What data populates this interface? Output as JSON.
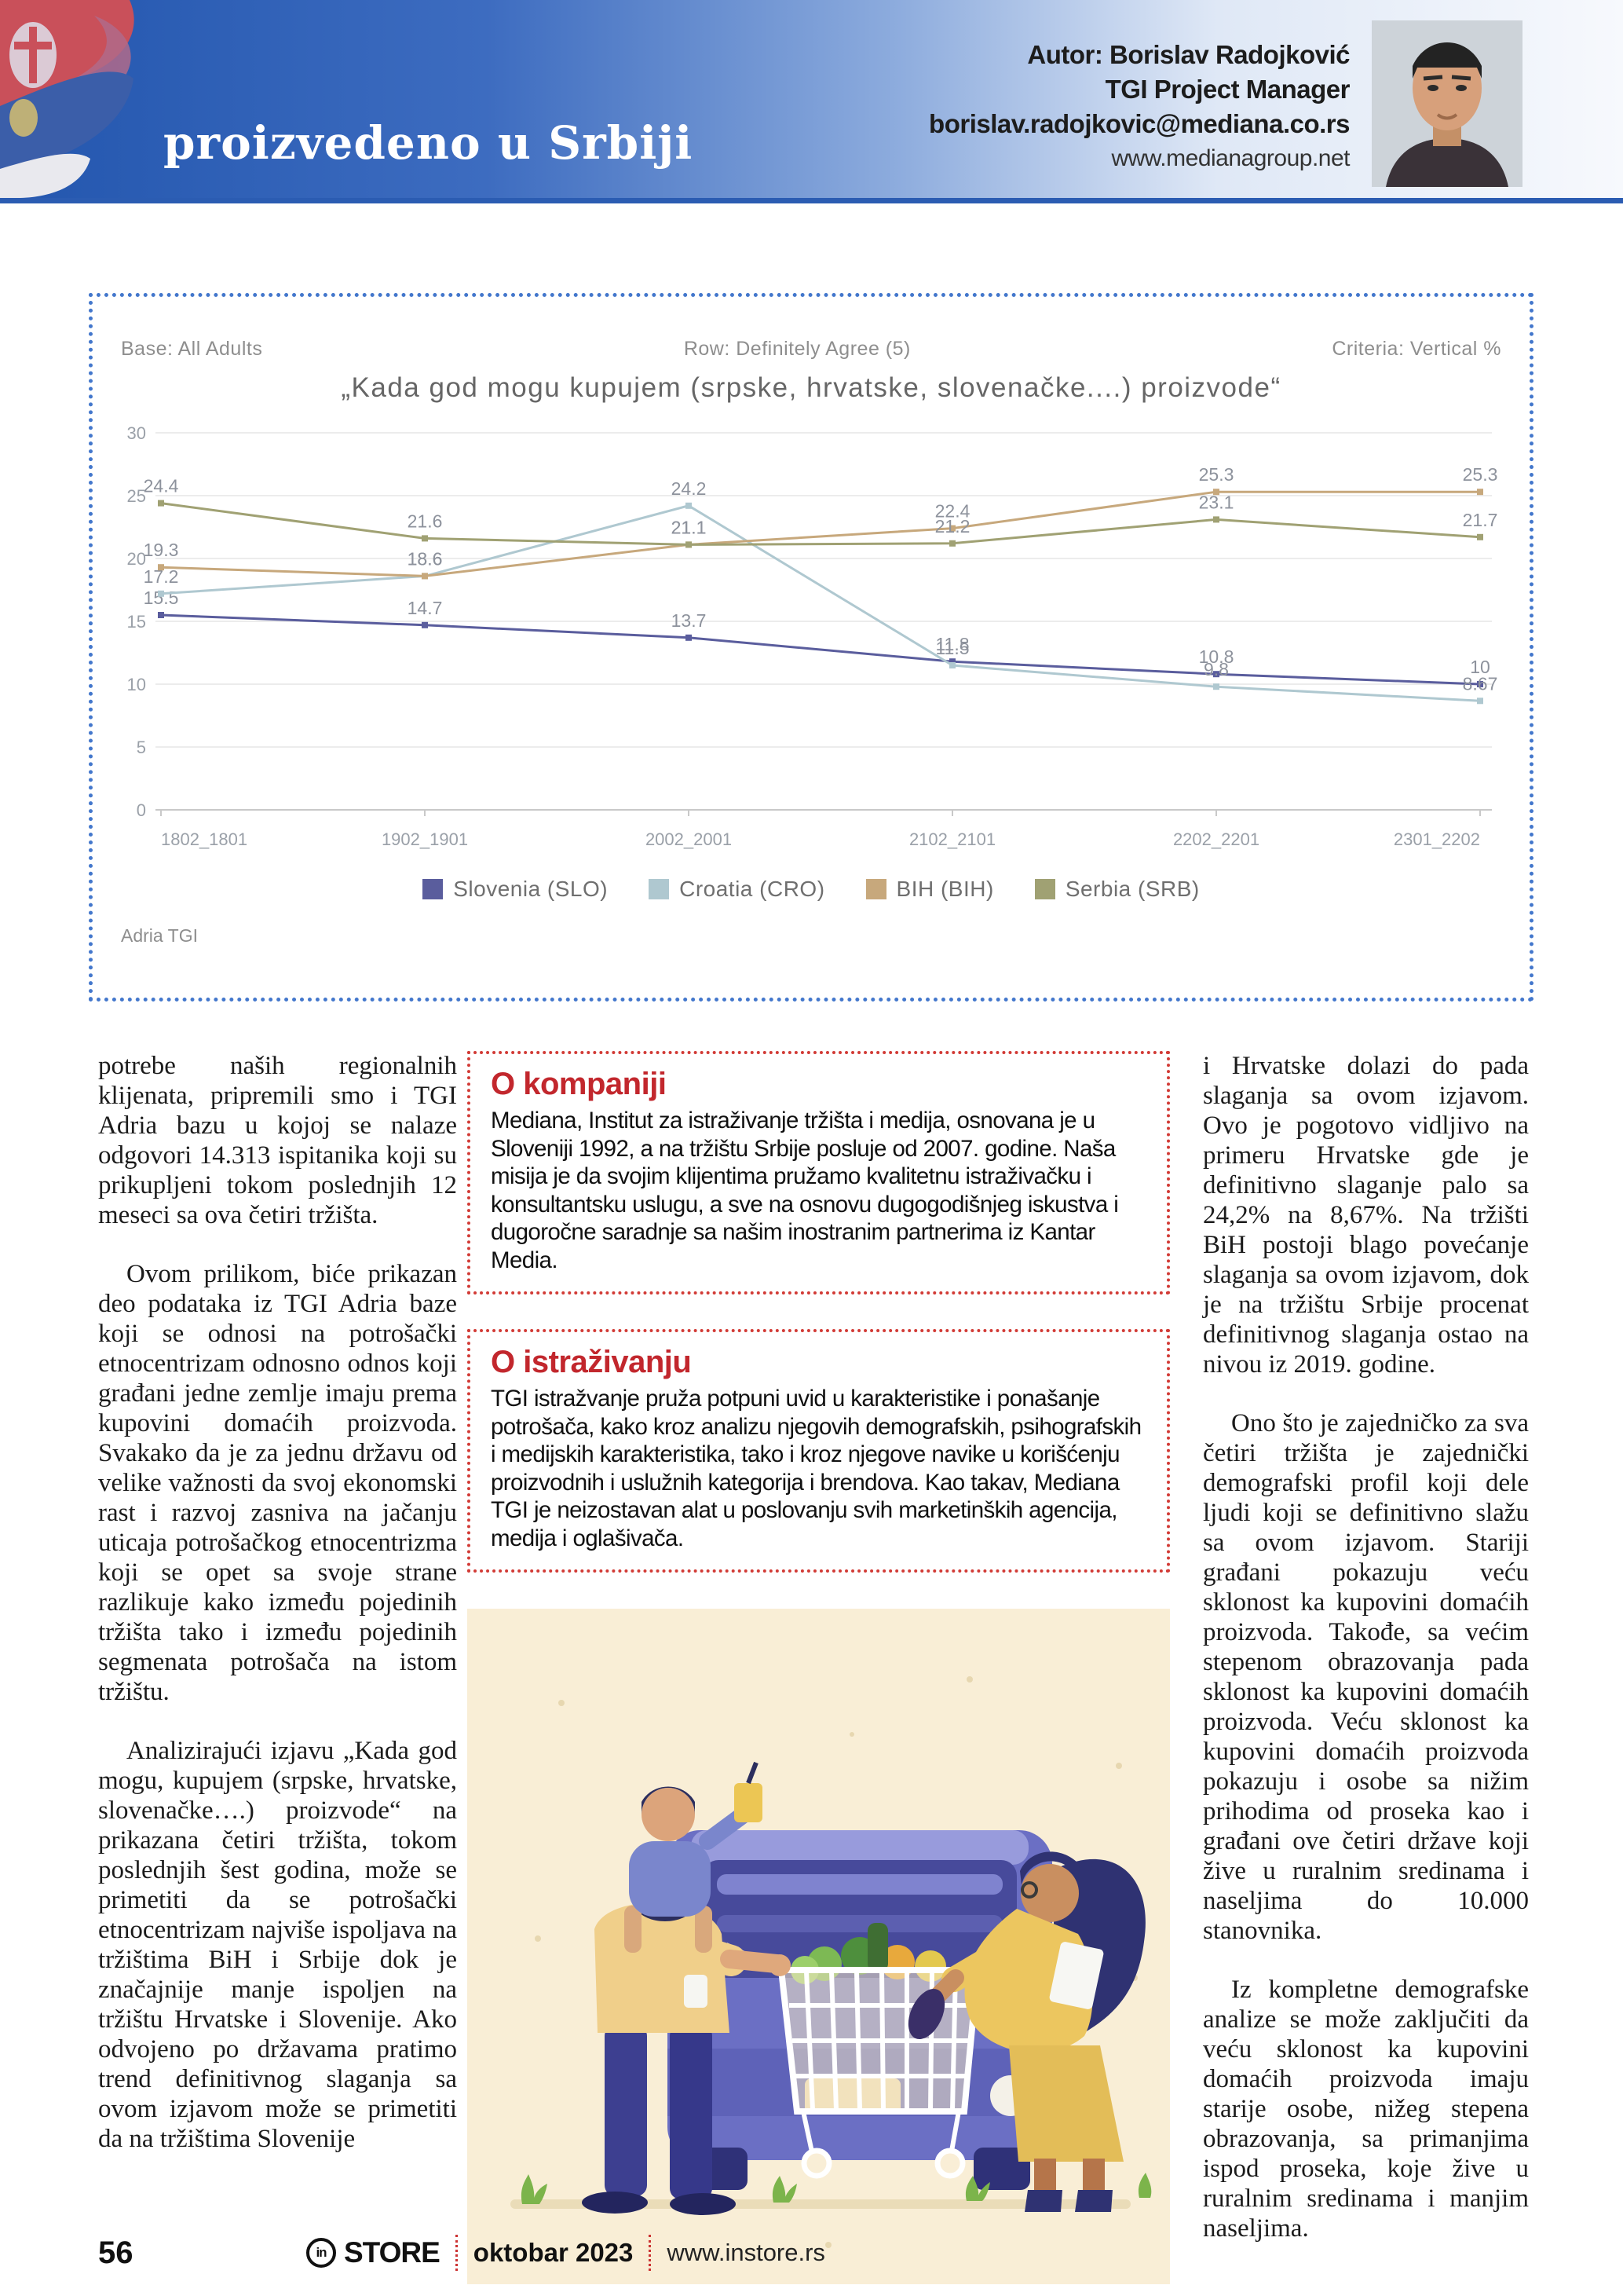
{
  "header": {
    "section_title": "proizvedeno u Srbiji",
    "author_line1": "Autor: Borislav Radojković",
    "author_line2": "TGI Project Manager",
    "author_line3": "borislav.radojkovic@mediana.co.rs",
    "author_line4": "www.medianagroup.net",
    "accent_color": "#2b5cb2"
  },
  "chart_data": {
    "type": "line",
    "title": "„Kada god mogu kupujem (srpske, hrvatske, slovenačke....) proizvode“",
    "base_note": "Base: All Adults",
    "row_note": "Row: Definitely Agree (5)",
    "criteria_note": "Criteria: Vertical %",
    "source_note": "Adria TGI",
    "categories": [
      "1802_1801",
      "1902_1901",
      "2002_2001",
      "2102_2101",
      "2202_2201",
      "2301_2202"
    ],
    "series": [
      {
        "name": "Slovenia (SLO)",
        "color": "#5a5d9d",
        "values": [
          15.5,
          14.7,
          13.7,
          11.8,
          10.8,
          10
        ]
      },
      {
        "name": "Croatia (CRO)",
        "color": "#afc8d0",
        "values": [
          17.2,
          18.6,
          24.2,
          11.5,
          9.8,
          8.67
        ]
      },
      {
        "name": "BIH (BIH)",
        "color": "#c7a87c",
        "values": [
          19.3,
          18.6,
          21.1,
          22.4,
          25.3,
          25.3
        ]
      },
      {
        "name": "Serbia (SRB)",
        "color": "#a0a173",
        "values": [
          24.4,
          21.6,
          21.1,
          21.2,
          23.1,
          21.7
        ]
      }
    ],
    "ylim": [
      0,
      30
    ],
    "ytick_step": 5,
    "grid": true,
    "legend_position": "bottom"
  },
  "article": {
    "left": [
      "potrebe naših regionalnih klijenata, pripremili smo i TGI Adria bazu u kojoj se nalaze odgovori 14.313 ispitanika koji su prikupljeni tokom poslednjih 12 meseci sa ova četiri tržišta.",
      "Ovom prilikom, biće prikazan deo podataka iz TGI Adria baze koji se odnosi na potrošački etnocentrizam odnosno odnos koji građani jedne zemlje imaju prema kupovini domaćih proizvoda. Svakako da je za jednu državu od velike važnosti da svoj ekonomski rast i razvoj zasniva na jačanju uticaja potrošačkog etnocentrizma koji se opet sa svoje strane razlikuje kako između pojedinih tržišta tako i između pojedinih segmenata potrošača na istom tržištu.",
      "Analizirajući izjavu „Kada god mogu, kupujem (srpske, hrvatske, slovenačke….) proizvode“ na prikazana četiri tržišta, tokom poslednjih šest godina, može se primetiti da se potrošački etnocentrizam najviše ispoljava na tržištima BiH i Srbije dok je značajnije manje ispoljen na tržištu Hrvatske i Slovenije. Ako odvojeno po državama pratimo trend definitivnog slaganja sa ovom izjavom može se primetiti da na tržištima Slovenije"
    ],
    "right": [
      "i Hrvatske dolazi do pada slaganja sa ovom izjavom. Ovo je pogotovo vidljivo na primeru Hrvatske gde je definitivno slaganje palo sa 24,2% na 8,67%. Na tržišti BiH postoji blago povećanje slaganja sa ovom izjavom, dok je na tržištu Srbije procenat definitivnog slaganja ostao na nivou iz 2019. godine.",
      "Ono što je zajedničko za sva četiri tržišta je zajednički demografski profil koji dele ljudi koji se definitivno slažu sa ovom izjavom. Stariji građani pokazuju veću sklonost ka kupovini domaćih proizvoda. Takođe, sa većim stepenom obrazovanja pada sklonost ka kupovini domaćih proizvoda. Veću sklonost ka kupovini domaćih proizvoda pokazuju i osobe sa nižim prihodima od proseka kao i građani ove četiri države koji žive u ruralnim sredinama i naseljima do 10.000 stanovnika.",
      "Iz kompletne demografske analize se može zaključiti da veću sklonost ka kupovini domaćih proizvoda imaju starije osobe, nižeg stepena obrazovanja, sa primanjima ispod proseka, koje žive u ruralnim sredinama i manjim naseljima."
    ]
  },
  "info_boxes": [
    {
      "heading": "O kompaniji",
      "body": "Mediana, Institut za istraživanje tržišta i medija, osnovana je u Sloveniji 1992, a na tržištu Srbije posluje od 2007. godine. Naša misija je da svojim klijentima pružamo kvalitetnu istraživačku i konsultantsku uslugu, a sve na osnovu dugogodišnjeg iskustva i dugoročne saradnje sa našim inostranim partnerima iz Kantar Media."
    },
    {
      "heading": "O istraživanju",
      "body": "TGI istražvanje pruža potpuni uvid u karakteristike i ponašanje potrošača, kako kroz analizu njegovih demografskih, psihografskih i medijskih karakteristika, tako i kroz njegove navike u korišćenju proizvodnih i uslužnih kategorija i brendova. Kao takav, Mediana TGI je neizostavan alat u poslovanju svih marketinških agencija, medija i oglašivača."
    }
  ],
  "footer": {
    "page_number": "56",
    "logo_monogram": "in",
    "brand": "STORE",
    "issue": "oktobar 2023",
    "website": "www.instore.rs"
  }
}
